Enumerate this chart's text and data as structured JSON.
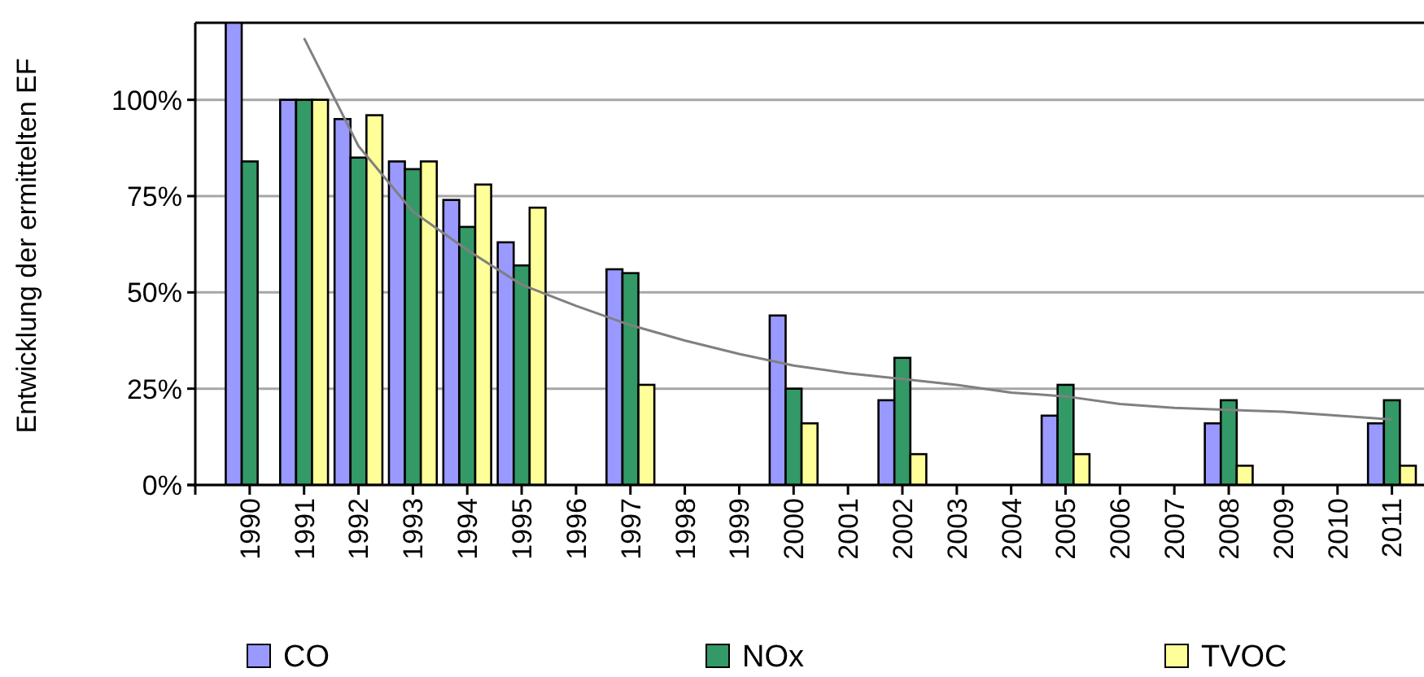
{
  "chart_data": {
    "type": "bar",
    "ylabel": "Entwicklung der ermittelten EF",
    "categories": [
      "1990",
      "1991",
      "1992",
      "1993",
      "1994",
      "1995",
      "1996",
      "1997",
      "1998",
      "1999",
      "2000",
      "2001",
      "2002",
      "2003",
      "2004",
      "2005",
      "2006",
      "2007",
      "2008",
      "2009",
      "2010",
      "2011"
    ],
    "series": [
      {
        "name": "CO",
        "color": "#9999ff",
        "values": [
          120,
          100,
          95,
          84,
          74,
          63,
          null,
          56,
          null,
          null,
          44,
          null,
          22,
          null,
          null,
          18,
          null,
          null,
          16,
          null,
          null,
          16
        ]
      },
      {
        "name": "NOx",
        "color": "#339966",
        "values": [
          84,
          100,
          85,
          82,
          67,
          57,
          null,
          55,
          null,
          null,
          25,
          null,
          33,
          null,
          null,
          26,
          null,
          null,
          22,
          null,
          null,
          22
        ]
      },
      {
        "name": "TVOC",
        "color": "#ffff99",
        "values": [
          null,
          100,
          96,
          84,
          78,
          72,
          null,
          26,
          null,
          null,
          16,
          null,
          8,
          null,
          null,
          8,
          null,
          null,
          5,
          null,
          null,
          5
        ]
      },
      {
        "type": "line",
        "color": "#808080",
        "marker": "none",
        "line_style": "solid",
        "values": [
          null,
          116,
          88,
          71,
          61,
          52,
          46.5,
          41.5,
          37.5,
          34,
          31,
          29,
          27.5,
          26,
          24,
          23,
          21,
          20,
          19.5,
          19,
          18,
          17
        ]
      }
    ],
    "ylim": [
      0,
      120
    ],
    "yticks": [
      {
        "value": 0,
        "label": "0%"
      },
      {
        "value": 25,
        "label": "25%"
      },
      {
        "value": 50,
        "label": "50%"
      },
      {
        "value": 75,
        "label": "75%"
      },
      {
        "value": 100,
        "label": "100%"
      }
    ],
    "grid": "y",
    "legend": "bottom"
  }
}
